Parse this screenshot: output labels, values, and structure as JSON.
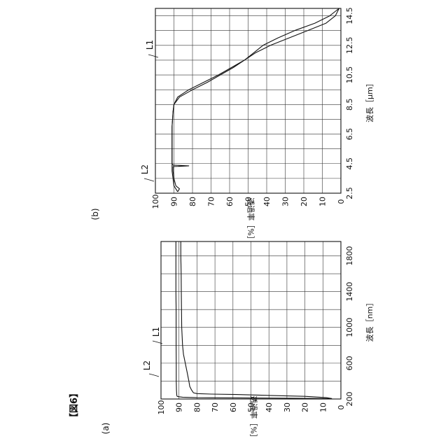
{
  "figure_label": "【図6】",
  "chart_data": [
    {
      "panel_label": "(a)",
      "type": "line",
      "xlabel": "波長［nm］",
      "ylabel": "透過率［%］",
      "xlim": [
        200,
        1960
      ],
      "ylim": [
        0,
        100
      ],
      "x_ticks": [
        "200",
        "600",
        "1000",
        "1400",
        "1800"
      ],
      "y_ticks": [
        "100",
        "90",
        "80",
        "70",
        "60",
        "50",
        "40",
        "30",
        "20",
        "10",
        "0"
      ],
      "grid": true,
      "series": [
        {
          "name": "L1",
          "x": [
            205,
            215,
            230,
            240,
            250,
            255,
            260,
            270,
            300,
            340,
            400,
            500,
            600,
            700,
            800,
            1000,
            1200,
            1400,
            1600,
            1800,
            1960
          ],
          "y": [
            5,
            8,
            20,
            40,
            58,
            72,
            80,
            82,
            83,
            84,
            84.5,
            85.5,
            86.5,
            87.5,
            88,
            88.5,
            88.6,
            88.7,
            88.8,
            89,
            89
          ]
        },
        {
          "name": "L2",
          "x": [
            205,
            210,
            215,
            220,
            225,
            230,
            240,
            260,
            300,
            400,
            500,
            600,
            800,
            1000,
            1200,
            1400,
            1600,
            1800,
            1960
          ],
          "y": [
            5,
            40,
            80,
            88,
            90,
            91,
            91.2,
            91.3,
            91.4,
            91.5,
            91.5,
            91.5,
            91.6,
            91.6,
            91.6,
            91.7,
            91.7,
            91.7,
            91.7
          ]
        }
      ]
    },
    {
      "panel_label": "(b)",
      "type": "line",
      "xlabel": "波長［μm］",
      "ylabel": "透過率［%］",
      "xlim": [
        2.5,
        15
      ],
      "ylim": [
        0,
        100
      ],
      "x_ticks": [
        "2.5",
        "4.5",
        "6.5",
        "8.5",
        "10.5",
        "12.5",
        "14.5"
      ],
      "y_ticks": [
        "100",
        "90",
        "80",
        "70",
        "60",
        "50",
        "40",
        "30",
        "20",
        "10",
        "0"
      ],
      "grid": true,
      "series": [
        {
          "name": "L1",
          "x": [
            2.6,
            3,
            4,
            5,
            6,
            7,
            8,
            8.5,
            9,
            9.5,
            10,
            10.5,
            11,
            11.5,
            12,
            12.5,
            13,
            13.5,
            14,
            14.5,
            15
          ],
          "y": [
            88,
            90,
            91,
            91,
            91,
            91,
            90.5,
            90,
            87,
            80,
            72,
            65,
            58,
            52,
            47,
            42,
            34,
            25,
            14,
            6,
            1
          ]
        },
        {
          "name": "L2",
          "x": [
            2.6,
            2.8,
            3,
            3.5,
            4,
            4.3,
            4.35,
            4.4,
            4.5,
            5,
            6,
            7,
            8,
            8.5,
            9,
            9.5,
            10,
            10.5,
            11,
            11.5,
            12,
            12.5,
            13,
            13.5,
            14,
            14.5,
            15
          ],
          "y": [
            88,
            87,
            89,
            90,
            90.5,
            90.5,
            82,
            90.5,
            91,
            91,
            91,
            91,
            90.5,
            90,
            88,
            82,
            74,
            66,
            59,
            52,
            46,
            38,
            28,
            18,
            8,
            3,
            1
          ]
        }
      ]
    }
  ]
}
